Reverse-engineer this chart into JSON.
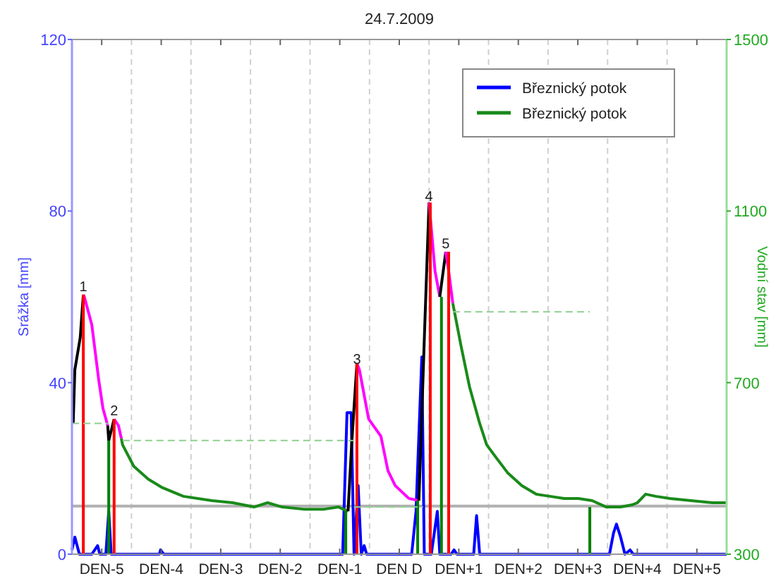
{
  "chart_data": {
    "type": "line",
    "title": "24.7.2009",
    "ylabel": "Srážka [mm]",
    "y2label": "Vodní stav [mm]",
    "xlim": [
      "2009-07-19T00:00",
      "2009-07-30T00:00"
    ],
    "xticks": [
      {
        "value": "2009-07-19T12:00",
        "label": "DEN-5"
      },
      {
        "value": "2009-07-20T00:00",
        "label": null
      },
      {
        "value": "2009-07-20T12:00",
        "label": "DEN-4"
      },
      {
        "value": "2009-07-21T00:00",
        "label": null
      },
      {
        "value": "2009-07-21T12:00",
        "label": "DEN-3"
      },
      {
        "value": "2009-07-22T00:00",
        "label": null
      },
      {
        "value": "2009-07-22T12:00",
        "label": "DEN-2"
      },
      {
        "value": "2009-07-23T00:00",
        "label": null
      },
      {
        "value": "2009-07-23T12:00",
        "label": "DEN-1"
      },
      {
        "value": "2009-07-24T00:00",
        "label": null
      },
      {
        "value": "2009-07-24T12:00",
        "label": "DEN D"
      },
      {
        "value": "2009-07-25T00:00",
        "label": null
      },
      {
        "value": "2009-07-25T12:00",
        "label": "DEN+1"
      },
      {
        "value": "2009-07-26T00:00",
        "label": null
      },
      {
        "value": "2009-07-26T12:00",
        "label": "DEN+2"
      },
      {
        "value": "2009-07-27T00:00",
        "label": null
      },
      {
        "value": "2009-07-27T12:00",
        "label": "DEN+3"
      },
      {
        "value": "2009-07-28T00:00",
        "label": null
      },
      {
        "value": "2009-07-28T12:00",
        "label": "DEN+4"
      },
      {
        "value": "2009-07-29T00:00",
        "label": null
      },
      {
        "value": "2009-07-29T12:00",
        "label": "DEN+5"
      }
    ],
    "ylim": [
      0,
      120
    ],
    "yticks": [
      0,
      40,
      80,
      120
    ],
    "y2lim": [
      300,
      1500
    ],
    "y2ticks": [
      300,
      700,
      1100,
      1500
    ],
    "grid": "x",
    "legend": "top right",
    "series": [
      {
        "name": "Březnický potok",
        "color": "#0000ff",
        "x": [
          "2009-07-19T00:00",
          "2009-07-19T01:10",
          "2009-07-19T03:00",
          "2009-07-19T08:00",
          "2009-07-19T10:20",
          "2009-07-19T11:15",
          "2009-07-19T13:40",
          "2009-07-19T14:50",
          "2009-07-19T15:50",
          "2009-07-20T11:15",
          "2009-07-20T11:45",
          "2009-07-20T13:00",
          "2009-07-23T13:10",
          "2009-07-23T14:55",
          "2009-07-23T16:35",
          "2009-07-23T17:45",
          "2009-07-23T19:25",
          "2009-07-23T20:40",
          "2009-07-23T21:50",
          "2009-07-23T22:50",
          "2009-07-24T17:00",
          "2009-07-24T18:45",
          "2009-07-24T21:05",
          "2009-07-24T22:05",
          "2009-07-25T00:55",
          "2009-07-25T03:20",
          "2009-07-25T04:20",
          "2009-07-25T08:55",
          "2009-07-25T10:05",
          "2009-07-25T11:15",
          "2009-07-25T18:00",
          "2009-07-25T19:10",
          "2009-07-25T20:25",
          "2009-07-28T00:45",
          "2009-07-28T02:25",
          "2009-07-28T03:35",
          "2009-07-28T05:15",
          "2009-07-28T07:00",
          "2009-07-28T09:05",
          "2009-07-28T10:20",
          "2009-07-30T00:00"
        ],
        "values": [
          1,
          4,
          0,
          0,
          2,
          0,
          0,
          10,
          0,
          0,
          1,
          0,
          0,
          33,
          33,
          0,
          16,
          0,
          2,
          0,
          0,
          10,
          46,
          0,
          0,
          10,
          0,
          0,
          1,
          0,
          0,
          9,
          0,
          0,
          5,
          7,
          4,
          0,
          1,
          0,
          0
        ]
      },
      {
        "name": "Březnický potok",
        "color": "#1a8a1a",
        "axis": "y2",
        "x": [
          "2009-07-19T19:55",
          "2009-07-19T20:25",
          "2009-07-20T00:55",
          "2009-07-20T06:45",
          "2009-07-20T12:30",
          "2009-07-20T20:55",
          "2009-07-21T08:25",
          "2009-07-21T16:50",
          "2009-07-22T01:25",
          "2009-07-22T06:55",
          "2009-07-22T12:45",
          "2009-07-22T21:20",
          "2009-07-23T05:45",
          "2009-07-23T11:30",
          "2009-07-23T15:20",
          "2009-07-24T12:00",
          "2009-07-25T09:35",
          "2009-07-25T12:55",
          "2009-07-25T16:20",
          "2009-07-25T20:25",
          "2009-07-25T23:15",
          "2009-07-26T03:05",
          "2009-07-26T07:40",
          "2009-07-26T13:25",
          "2009-07-26T19:10",
          "2009-07-27T00:45",
          "2009-07-27T06:30",
          "2009-07-27T12:15",
          "2009-07-27T17:45",
          "2009-07-27T23:30",
          "2009-07-28T05:15",
          "2009-07-28T09:50",
          "2009-07-28T12:00",
          "2009-07-28T15:20",
          "2009-07-28T19:25",
          "2009-07-29T01:10",
          "2009-07-29T09:35",
          "2009-07-29T18:15",
          "2009-07-30T00:00"
        ],
        "values": [
          570,
          555,
          505,
          475,
          455,
          435,
          425,
          420,
          410,
          420,
          410,
          405,
          405,
          410,
          400,
          null,
          885,
          785,
          690,
          605,
          555,
          525,
          490,
          460,
          440,
          435,
          430,
          430,
          425,
          410,
          410,
          415,
          420,
          440,
          435,
          430,
          425,
          420,
          420
        ]
      },
      {
        "color": "#000000",
        "axis": "y2",
        "x": [
          "2009-07-19T00:30",
          "2009-07-19T01:10",
          "2009-07-19T03:20",
          "2009-07-19T04:35"
        ],
        "values": [
          605,
          730,
          805,
          905
        ]
      },
      {
        "color": "#ff00ff",
        "axis": "y2",
        "x": [
          "2009-07-19T04:35",
          "2009-07-19T05:00",
          "2009-07-19T08:00",
          "2009-07-19T10:50",
          "2009-07-19T12:30",
          "2009-07-19T14:25"
        ],
        "values": [
          905,
          900,
          835,
          705,
          640,
          600
        ]
      },
      {
        "color": "#000000",
        "axis": "y2",
        "x": [
          "2009-07-19T14:25",
          "2009-07-19T14:50",
          "2009-07-19T17:00"
        ],
        "values": [
          600,
          565,
          615
        ]
      },
      {
        "color": "#ff00ff",
        "axis": "y2",
        "x": [
          "2009-07-19T17:00",
          "2009-07-19T18:45",
          "2009-07-19T19:55"
        ],
        "values": [
          615,
          600,
          570
        ]
      },
      {
        "color": "#000000",
        "axis": "y2",
        "x": [
          "2009-07-23T15:20",
          "2009-07-23T16:50",
          "2009-07-23T18:55"
        ],
        "values": [
          400,
          560,
          745
        ]
      },
      {
        "color": "#ff00ff",
        "axis": "y2",
        "x": [
          "2009-07-23T18:55",
          "2009-07-23T19:55",
          "2009-07-23T22:50",
          "2009-07-23T23:40",
          "2009-07-24T04:35",
          "2009-07-24T07:25",
          "2009-07-24T10:20",
          "2009-07-24T15:50",
          "2009-07-24T19:55"
        ],
        "values": [
          745,
          730,
          640,
          615,
          575,
          495,
          460,
          430,
          425
        ]
      },
      {
        "color": "#000000",
        "axis": "y2",
        "x": [
          "2009-07-24T19:55",
          "2009-07-24T22:05",
          "2009-07-25T00:00"
        ],
        "values": [
          425,
          800,
          1120
        ]
      },
      {
        "color": "#ff00ff",
        "axis": "y2",
        "x": [
          "2009-07-25T00:00",
          "2009-07-25T02:25",
          "2009-07-25T04:20"
        ],
        "values": [
          1120,
          960,
          900
        ]
      },
      {
        "color": "#000000",
        "axis": "y2",
        "x": [
          "2009-07-25T04:20",
          "2009-07-25T06:45"
        ],
        "values": [
          900,
          1005
        ]
      },
      {
        "color": "#ff00ff",
        "axis": "y2",
        "x": [
          "2009-07-25T06:45",
          "2009-07-25T07:55",
          "2009-07-25T09:35"
        ],
        "values": [
          1005,
          960,
          885
        ]
      },
      {
        "color": "#ff0000",
        "axis": "y2",
        "x": [
          "2009-07-19T04:35",
          "2009-07-19T04:35"
        ],
        "values": [
          300,
          905
        ]
      },
      {
        "color": "#ff0000",
        "axis": "y2",
        "x": [
          "2009-07-19T17:00",
          "2009-07-19T17:00"
        ],
        "values": [
          300,
          615
        ]
      },
      {
        "color": "#ff0000",
        "axis": "y2",
        "x": [
          "2009-07-23T18:55",
          "2009-07-23T18:55"
        ],
        "values": [
          300,
          745
        ]
      },
      {
        "color": "#ff0000",
        "axis": "y2",
        "x": [
          "2009-07-25T00:30",
          "2009-07-25T00:30"
        ],
        "values": [
          300,
          1120
        ]
      },
      {
        "color": "#ff0000",
        "axis": "y2",
        "x": [
          "2009-07-25T07:55",
          "2009-07-25T07:55"
        ],
        "values": [
          300,
          1005
        ]
      },
      {
        "color": "#008000",
        "axis": "y2",
        "x": [
          "2009-07-19T14:50",
          "2009-07-19T14:50"
        ],
        "values": [
          300,
          565
        ]
      },
      {
        "color": "#008000",
        "axis": "y2",
        "x": [
          "2009-07-23T14:25",
          "2009-07-23T14:25"
        ],
        "values": [
          300,
          400
        ]
      },
      {
        "color": "#008000",
        "axis": "y2",
        "x": [
          "2009-07-24T19:25",
          "2009-07-24T19:25"
        ],
        "values": [
          300,
          425
        ]
      },
      {
        "color": "#008000",
        "axis": "y2",
        "x": [
          "2009-07-25T05:00",
          "2009-07-25T05:00"
        ],
        "values": [
          300,
          900
        ]
      },
      {
        "color": "#008000",
        "axis": "y2",
        "x": [
          "2009-07-27T16:50",
          "2009-07-27T16:50"
        ],
        "values": [
          300,
          410
        ]
      },
      {
        "color": "#8fcf8f",
        "axis": "y2",
        "line_style": "dashed",
        "x": [
          "2009-07-19T00:00",
          "2009-07-19T14:50"
        ],
        "values": [
          605,
          605
        ]
      },
      {
        "color": "#8fcf8f",
        "axis": "y2",
        "line_style": "dashed",
        "x": [
          "2009-07-19T20:25",
          "2009-07-23T17:45"
        ],
        "values": [
          565,
          565
        ]
      },
      {
        "color": "#8fcf8f",
        "axis": "y2",
        "line_style": "dashed",
        "x": [
          "2009-07-23T17:45",
          "2009-07-24T21:35"
        ],
        "values": [
          410,
          410
        ]
      },
      {
        "color": "#8fcf8f",
        "axis": "y2",
        "line_style": "dashed",
        "x": [
          "2009-07-25T09:35",
          "2009-07-27T16:50"
        ],
        "values": [
          865,
          865
        ]
      }
    ],
    "ref_lines": [
      {
        "axis": "y2",
        "value": 412,
        "color": "#b0b0b0"
      }
    ],
    "annotations": [
      {
        "text": "1",
        "x": "2009-07-19T04:35",
        "y": 61
      },
      {
        "text": "2",
        "x": "2009-07-19T17:00",
        "y": 32
      },
      {
        "text": "3",
        "x": "2009-07-23T18:55",
        "y": 44
      },
      {
        "text": "4",
        "x": "2009-07-25T00:00",
        "y": 82
      },
      {
        "text": "5",
        "x": "2009-07-25T06:45",
        "y": 71
      }
    ]
  }
}
